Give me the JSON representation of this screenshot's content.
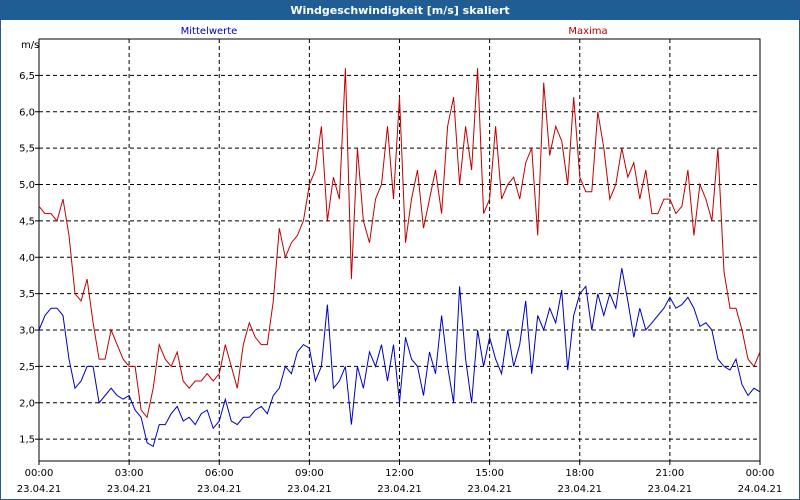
{
  "window": {
    "title": "Windgeschwindigkeit [m/s] skaliert"
  },
  "chart_data": {
    "type": "line",
    "title": "Windgeschwindigkeit [m/s] skaliert",
    "ylabel": "m/s",
    "xlabel": "",
    "ylim": [
      1.2,
      7.0
    ],
    "xlim": [
      0,
      24
    ],
    "grid": true,
    "y_ticks": [
      "1,5",
      "2,0",
      "2,5",
      "3,0",
      "3,5",
      "4,0",
      "4,5",
      "5,0",
      "5,5",
      "6,0",
      "6,5"
    ],
    "y_tick_values": [
      1.5,
      2.0,
      2.5,
      3.0,
      3.5,
      4.0,
      4.5,
      5.0,
      5.5,
      6.0,
      6.5
    ],
    "x_ticks": [
      {
        "time": "00:00",
        "date": "23.04.21"
      },
      {
        "time": "03:00",
        "date": "23.04.21"
      },
      {
        "time": "06:00",
        "date": "23.04.21"
      },
      {
        "time": "09:00",
        "date": "23.04.21"
      },
      {
        "time": "12:00",
        "date": "23.04.21"
      },
      {
        "time": "15:00",
        "date": "23.04.21"
      },
      {
        "time": "18:00",
        "date": "23.04.21"
      },
      {
        "time": "21:00",
        "date": "23.04.21"
      },
      {
        "time": "00:00",
        "date": "24.04.21"
      }
    ],
    "x_tick_hours": [
      0,
      3,
      6,
      9,
      12,
      15,
      18,
      21,
      24
    ],
    "legend": [
      {
        "name": "Mittelwerte",
        "color": "#0000c0"
      },
      {
        "name": "Maxima",
        "color": "#c00000"
      }
    ],
    "series": [
      {
        "name": "Mittelwerte",
        "color": "#0000c0",
        "x": [
          0,
          0.2,
          0.4,
          0.6,
          0.8,
          1.0,
          1.2,
          1.4,
          1.6,
          1.8,
          2.0,
          2.2,
          2.4,
          2.6,
          2.8,
          3.0,
          3.2,
          3.4,
          3.6,
          3.8,
          4.0,
          4.2,
          4.4,
          4.6,
          4.8,
          5.0,
          5.2,
          5.4,
          5.6,
          5.8,
          6.0,
          6.2,
          6.4,
          6.6,
          6.8,
          7.0,
          7.2,
          7.4,
          7.6,
          7.8,
          8.0,
          8.2,
          8.4,
          8.6,
          8.8,
          9.0,
          9.2,
          9.4,
          9.6,
          9.8,
          10.0,
          10.2,
          10.4,
          10.6,
          10.8,
          11.0,
          11.2,
          11.4,
          11.6,
          11.8,
          12.0,
          12.2,
          12.4,
          12.6,
          12.8,
          13.0,
          13.2,
          13.4,
          13.6,
          13.8,
          14.0,
          14.2,
          14.4,
          14.6,
          14.8,
          15.0,
          15.2,
          15.4,
          15.6,
          15.8,
          16.0,
          16.2,
          16.4,
          16.6,
          16.8,
          17.0,
          17.2,
          17.4,
          17.6,
          17.8,
          18.0,
          18.2,
          18.4,
          18.6,
          18.8,
          19.0,
          19.2,
          19.4,
          19.6,
          19.8,
          20.0,
          20.2,
          20.4,
          20.6,
          20.8,
          21.0,
          21.2,
          21.4,
          21.6,
          21.8,
          22.0,
          22.2,
          22.4,
          22.6,
          22.8,
          23.0,
          23.2,
          23.4,
          23.6,
          23.8,
          24.0
        ],
        "y": [
          3.0,
          3.2,
          3.3,
          3.3,
          3.2,
          2.6,
          2.2,
          2.3,
          2.5,
          2.5,
          2.0,
          2.1,
          2.2,
          2.1,
          2.05,
          2.1,
          1.9,
          1.8,
          1.45,
          1.4,
          1.7,
          1.7,
          1.85,
          1.95,
          1.75,
          1.8,
          1.7,
          1.85,
          1.9,
          1.65,
          1.75,
          2.05,
          1.75,
          1.7,
          1.8,
          1.8,
          1.9,
          1.95,
          1.85,
          2.1,
          2.2,
          2.5,
          2.4,
          2.7,
          2.8,
          2.75,
          2.3,
          2.5,
          3.35,
          2.2,
          2.3,
          2.5,
          1.7,
          2.5,
          2.2,
          2.7,
          2.5,
          2.8,
          2.3,
          2.8,
          2.0,
          2.9,
          2.6,
          2.5,
          2.1,
          2.7,
          2.4,
          3.2,
          2.5,
          2.0,
          3.6,
          2.6,
          2.0,
          3.0,
          2.5,
          2.9,
          2.6,
          2.4,
          3.0,
          2.5,
          2.8,
          3.4,
          2.4,
          3.2,
          3.0,
          3.3,
          3.1,
          3.55,
          2.45,
          3.2,
          3.5,
          3.6,
          3.0,
          3.5,
          3.2,
          3.5,
          3.3,
          3.85,
          3.4,
          2.9,
          3.3,
          3.0,
          3.1,
          3.2,
          3.3,
          3.45,
          3.3,
          3.35,
          3.45,
          3.3,
          3.05,
          3.1,
          3.0,
          2.6,
          2.5,
          2.45,
          2.6,
          2.25,
          2.1,
          2.2,
          2.15
        ],
        "__x_hours_note": "x values are hours after 00:00 on 23.04.21"
      },
      {
        "name": "Maxima",
        "color": "#c00000",
        "x": [
          0,
          0.2,
          0.4,
          0.6,
          0.8,
          1.0,
          1.2,
          1.4,
          1.6,
          1.8,
          2.0,
          2.2,
          2.4,
          2.6,
          2.8,
          3.0,
          3.2,
          3.4,
          3.6,
          3.8,
          4.0,
          4.2,
          4.4,
          4.6,
          4.8,
          5.0,
          5.2,
          5.4,
          5.6,
          5.8,
          6.0,
          6.2,
          6.4,
          6.6,
          6.8,
          7.0,
          7.2,
          7.4,
          7.6,
          7.8,
          8.0,
          8.2,
          8.4,
          8.6,
          8.8,
          9.0,
          9.2,
          9.4,
          9.6,
          9.8,
          10.0,
          10.2,
          10.4,
          10.6,
          10.8,
          11.0,
          11.2,
          11.4,
          11.6,
          11.8,
          12.0,
          12.2,
          12.4,
          12.6,
          12.8,
          13.0,
          13.2,
          13.4,
          13.6,
          13.8,
          14.0,
          14.2,
          14.4,
          14.6,
          14.8,
          15.0,
          15.2,
          15.4,
          15.6,
          15.8,
          16.0,
          16.2,
          16.4,
          16.6,
          16.8,
          17.0,
          17.2,
          17.4,
          17.6,
          17.8,
          18.0,
          18.2,
          18.4,
          18.6,
          18.8,
          19.0,
          19.2,
          19.4,
          19.6,
          19.8,
          20.0,
          20.2,
          20.4,
          20.6,
          20.8,
          21.0,
          21.2,
          21.4,
          21.6,
          21.8,
          22.0,
          22.2,
          22.4,
          22.6,
          22.8,
          23.0,
          23.2,
          23.4,
          23.6,
          23.8,
          24.0
        ],
        "y": [
          4.7,
          4.6,
          4.6,
          4.5,
          4.8,
          4.3,
          3.5,
          3.4,
          3.7,
          3.1,
          2.6,
          2.6,
          3.0,
          2.8,
          2.6,
          2.5,
          2.5,
          1.9,
          1.8,
          2.2,
          2.8,
          2.6,
          2.5,
          2.7,
          2.3,
          2.2,
          2.3,
          2.3,
          2.4,
          2.3,
          2.4,
          2.8,
          2.5,
          2.2,
          2.8,
          3.1,
          2.9,
          2.8,
          2.8,
          3.4,
          4.4,
          4.0,
          4.2,
          4.3,
          4.5,
          5.0,
          5.2,
          5.8,
          4.5,
          5.1,
          4.8,
          6.6,
          3.7,
          5.5,
          4.5,
          4.2,
          4.8,
          5.0,
          5.8,
          4.8,
          6.2,
          4.2,
          4.8,
          5.2,
          4.4,
          4.8,
          5.2,
          4.6,
          5.8,
          6.2,
          5.0,
          5.8,
          5.2,
          6.6,
          4.6,
          4.8,
          5.8,
          4.8,
          5.0,
          5.1,
          4.8,
          5.3,
          5.5,
          4.3,
          6.4,
          5.4,
          5.8,
          5.6,
          5.0,
          6.2,
          5.1,
          4.9,
          4.9,
          6.0,
          5.5,
          4.8,
          5.0,
          5.5,
          5.1,
          5.3,
          4.8,
          5.2,
          4.6,
          4.6,
          4.8,
          4.8,
          4.6,
          4.7,
          5.2,
          4.3,
          5.0,
          4.8,
          4.5,
          5.5,
          3.8,
          3.3,
          3.3,
          3.0,
          2.6,
          2.5,
          2.7
        ],
        "__x_hours_note": "x values are hours after 00:00 on 23.04.21"
      }
    ]
  }
}
